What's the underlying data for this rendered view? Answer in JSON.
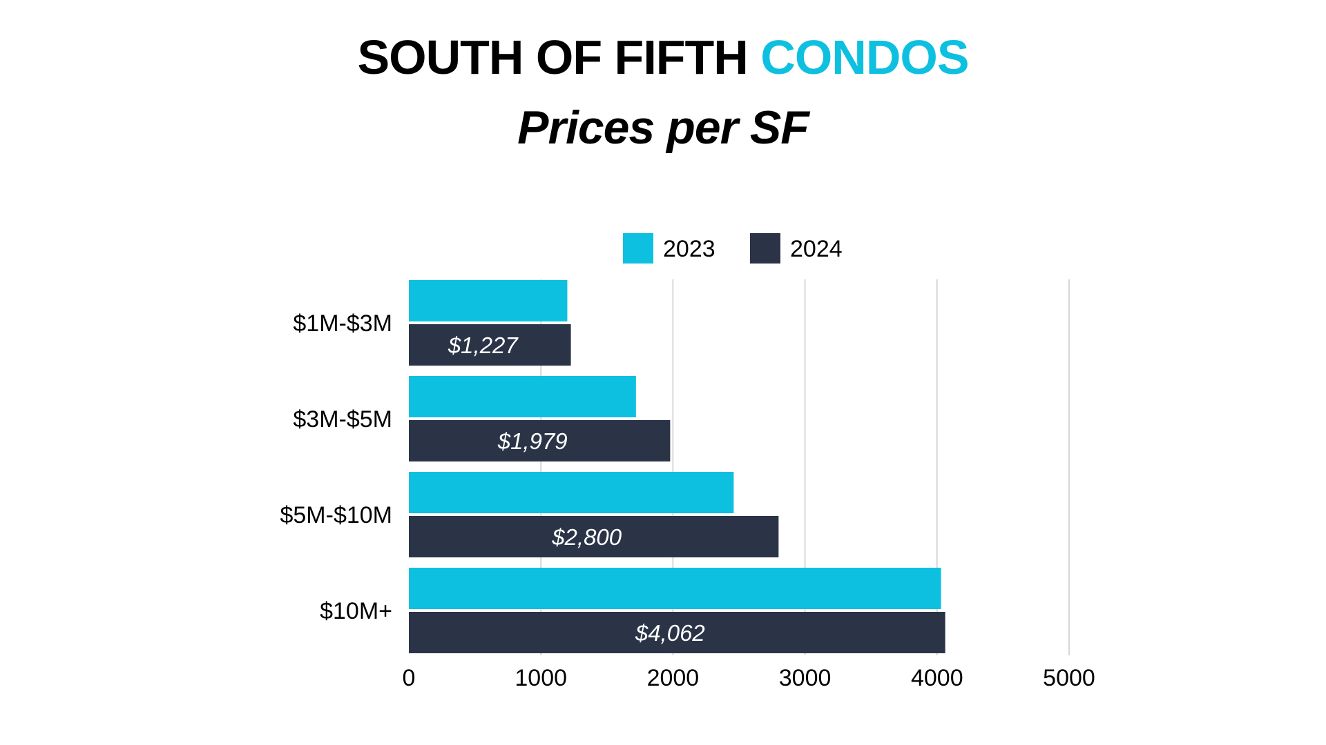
{
  "header": {
    "title_part1": "SOUTH OF FIFTH ",
    "title_part2": "CONDOS",
    "subtitle": "Prices per SF"
  },
  "colors": {
    "series_2023": "#0DC0E0",
    "series_2024": "#2B3447",
    "accent": "#0DC0E0",
    "gridline": "#C8C8C8",
    "text": "#000000",
    "bar_label": "#FFFFFF"
  },
  "chart_data": {
    "type": "bar",
    "orientation": "horizontal",
    "categories": [
      "$1M-$3M",
      "$3M-$5M",
      "$5M-$10M",
      "$10M+"
    ],
    "series": [
      {
        "name": "2023",
        "values": [
          1200,
          1720,
          2460,
          4030
        ]
      },
      {
        "name": "2024",
        "values": [
          1227,
          1979,
          2800,
          4062
        ],
        "labels": [
          "$1,227",
          "$1,979",
          "$2,800",
          "$4,062"
        ]
      }
    ],
    "xlim": [
      0,
      5000
    ],
    "xticks": [
      "0",
      "1000",
      "2000",
      "3000",
      "4000",
      "5000"
    ],
    "grid": true,
    "legend": "top-center"
  }
}
